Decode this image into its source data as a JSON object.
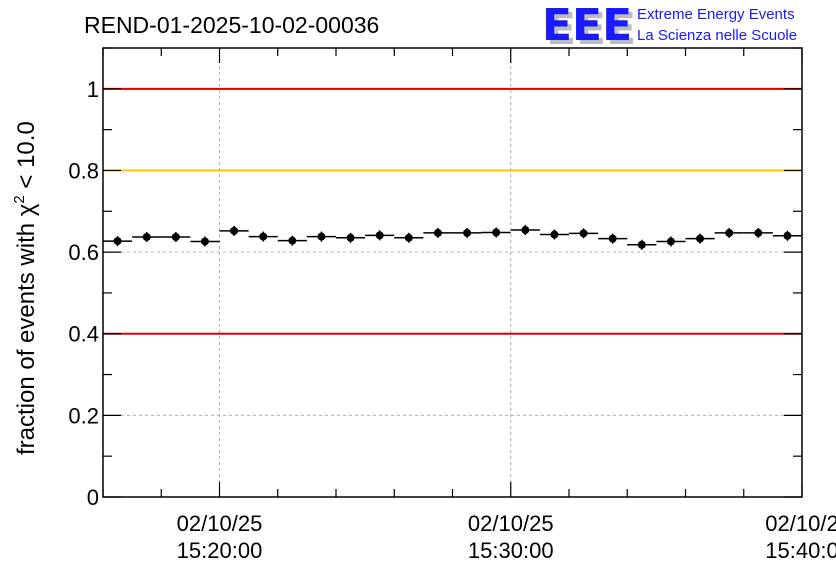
{
  "chart_data": {
    "type": "scatter",
    "title": "REND-01-2025-10-02-00036",
    "ylabel_main": "fraction of events with χ",
    "ylabel_sup": "2",
    "ylabel_tail": " < 10.0",
    "xlabel": "",
    "ylim": [
      0,
      1.1
    ],
    "xlim": [
      0,
      24
    ],
    "yticks": [
      {
        "value": 0,
        "label": "0"
      },
      {
        "value": 0.2,
        "label": "0.2"
      },
      {
        "value": 0.4,
        "label": "0.4"
      },
      {
        "value": 0.6,
        "label": "0.6"
      },
      {
        "value": 0.8,
        "label": "0.8"
      },
      {
        "value": 1,
        "label": "1"
      }
    ],
    "xticks": [
      {
        "value": 4,
        "date": "02/10/25",
        "time": "15:20:00"
      },
      {
        "value": 14,
        "date": "02/10/25",
        "time": "15:30:00"
      },
      {
        "value": 24,
        "date": "02/10/2",
        "time": "15:40:0"
      }
    ],
    "x_minor_step": 2,
    "y_minor_step": 0.1,
    "reference_lines": [
      {
        "value": 1.0,
        "color": "#e00000"
      },
      {
        "value": 0.8,
        "color": "#ffc000"
      },
      {
        "value": 0.4,
        "color": "#e00000"
      }
    ],
    "bin_half_width": 0.5,
    "points": [
      {
        "x": 0.5,
        "y": 0.627
      },
      {
        "x": 1.5,
        "y": 0.637
      },
      {
        "x": 2.5,
        "y": 0.637
      },
      {
        "x": 3.5,
        "y": 0.626
      },
      {
        "x": 4.5,
        "y": 0.652
      },
      {
        "x": 5.5,
        "y": 0.638
      },
      {
        "x": 6.5,
        "y": 0.628
      },
      {
        "x": 7.5,
        "y": 0.638
      },
      {
        "x": 8.5,
        "y": 0.635
      },
      {
        "x": 9.5,
        "y": 0.641
      },
      {
        "x": 10.5,
        "y": 0.635
      },
      {
        "x": 11.5,
        "y": 0.647
      },
      {
        "x": 12.5,
        "y": 0.647
      },
      {
        "x": 13.5,
        "y": 0.648
      },
      {
        "x": 14.5,
        "y": 0.654
      },
      {
        "x": 15.5,
        "y": 0.643
      },
      {
        "x": 16.5,
        "y": 0.646
      },
      {
        "x": 17.5,
        "y": 0.633
      },
      {
        "x": 18.5,
        "y": 0.618
      },
      {
        "x": 19.5,
        "y": 0.626
      },
      {
        "x": 20.5,
        "y": 0.633
      },
      {
        "x": 21.5,
        "y": 0.647
      },
      {
        "x": 22.5,
        "y": 0.647
      },
      {
        "x": 23.5,
        "y": 0.64
      }
    ]
  },
  "logo": {
    "text": "EEE",
    "line1": "Extreme Energy Events",
    "line2": "La Scienza nelle Scuole",
    "color": "#1a1aff",
    "shadow_color": "#bcbcbc"
  }
}
